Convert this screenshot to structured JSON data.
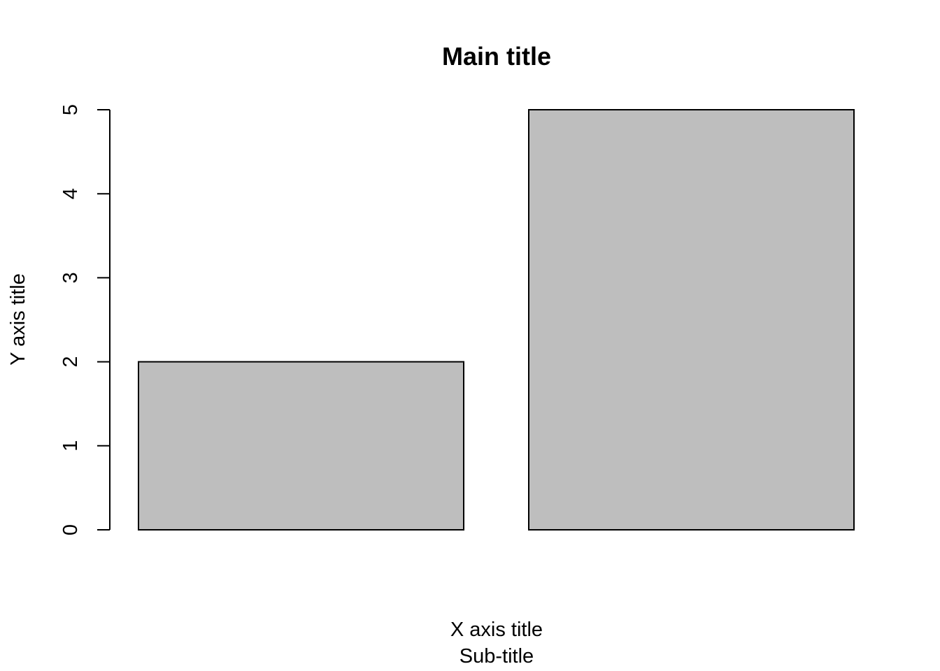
{
  "chart_data": {
    "type": "bar",
    "title": "Main title",
    "subtitle": "Sub-title",
    "xlabel": "X axis title",
    "ylabel": "Y axis title",
    "categories": [
      "",
      ""
    ],
    "values": [
      2,
      5
    ],
    "ylim": [
      0,
      5
    ],
    "yticks": [
      0,
      1,
      2,
      3,
      4,
      5
    ],
    "bar_color": "#bebebe",
    "grid": false,
    "legend": "none"
  }
}
